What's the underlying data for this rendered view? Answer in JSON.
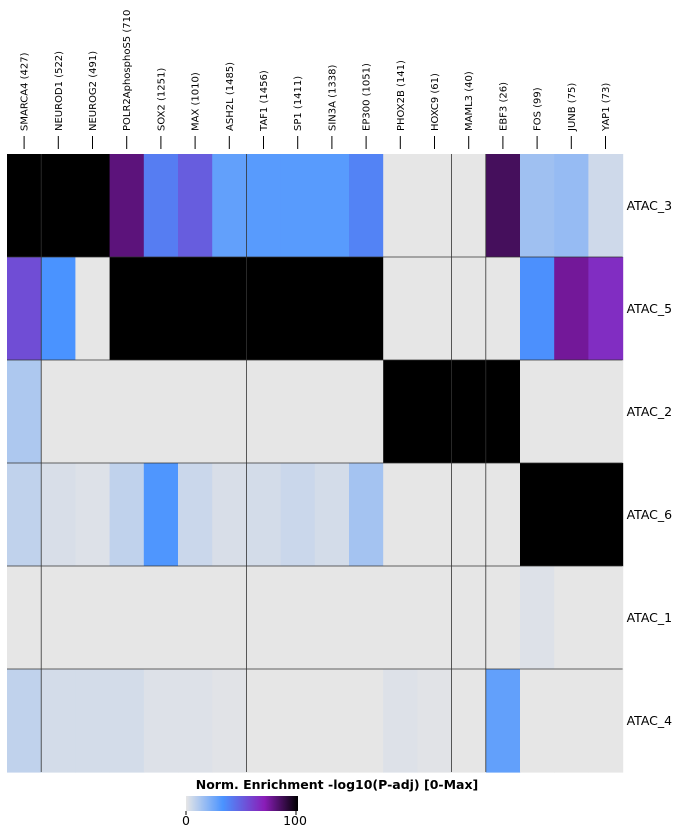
{
  "chart_data": {
    "type": "heatmap",
    "columns": [
      "SMARCA4 (427)",
      "NEUROD1 (522)",
      "NEUROG2 (491)",
      "POLR2AphosphoS5 (710",
      "SOX2 (1251)",
      "MAX (1010)",
      "ASH2L (1485)",
      "TAF1 (1456)",
      "SP1 (1411)",
      "SIN3A (1338)",
      "EP300 (1051)",
      "PHOX2B (141)",
      "HOXC9 (61)",
      "MAML3 (40)",
      "EBF3 (26)",
      "FOS (99)",
      "JUNB (75)",
      "YAP1 (73)"
    ],
    "rows": [
      "ATAC_3",
      "ATAC_5",
      "ATAC_2",
      "ATAC_6",
      "ATAC_1",
      "ATAC_4"
    ],
    "values": [
      [
        100,
        100,
        100,
        80,
        40,
        50,
        28,
        30,
        30,
        30,
        38,
        0,
        0,
        0,
        85,
        15,
        17,
        5
      ],
      [
        55,
        33,
        0,
        100,
        100,
        100,
        100,
        100,
        100,
        100,
        100,
        0,
        0,
        0,
        0,
        34,
        75,
        65
      ],
      [
        12,
        0,
        0,
        0,
        0,
        0,
        0,
        0,
        0,
        0,
        0,
        100,
        100,
        100,
        100,
        0,
        0,
        0
      ],
      [
        8,
        3,
        2,
        8,
        32,
        6,
        3,
        4,
        6,
        4,
        14,
        0,
        0,
        0,
        0,
        100,
        100,
        100
      ],
      [
        0,
        0,
        0,
        0,
        0,
        0,
        0,
        0,
        0,
        0,
        0,
        0,
        0,
        0,
        0,
        2,
        0,
        0
      ],
      [
        8,
        4,
        4,
        4,
        2,
        2,
        1,
        0,
        0,
        0,
        0,
        2,
        1,
        0,
        28,
        0,
        0,
        0
      ]
    ],
    "row_separators_after": [
      0,
      1,
      2,
      3,
      4
    ],
    "col_separators_after": [
      0,
      6,
      12,
      13
    ],
    "colorbar": {
      "title": "Norm. Enrichment -log10(P-adj) [0-Max]",
      "min_label": "0",
      "max_label": "100",
      "range": [
        0,
        100
      ],
      "colormap": [
        "#e6e6e6",
        "#4a93ff",
        "#8a1db8",
        "#000000"
      ],
      "stops": [
        0,
        0.33,
        0.7,
        1
      ]
    }
  }
}
